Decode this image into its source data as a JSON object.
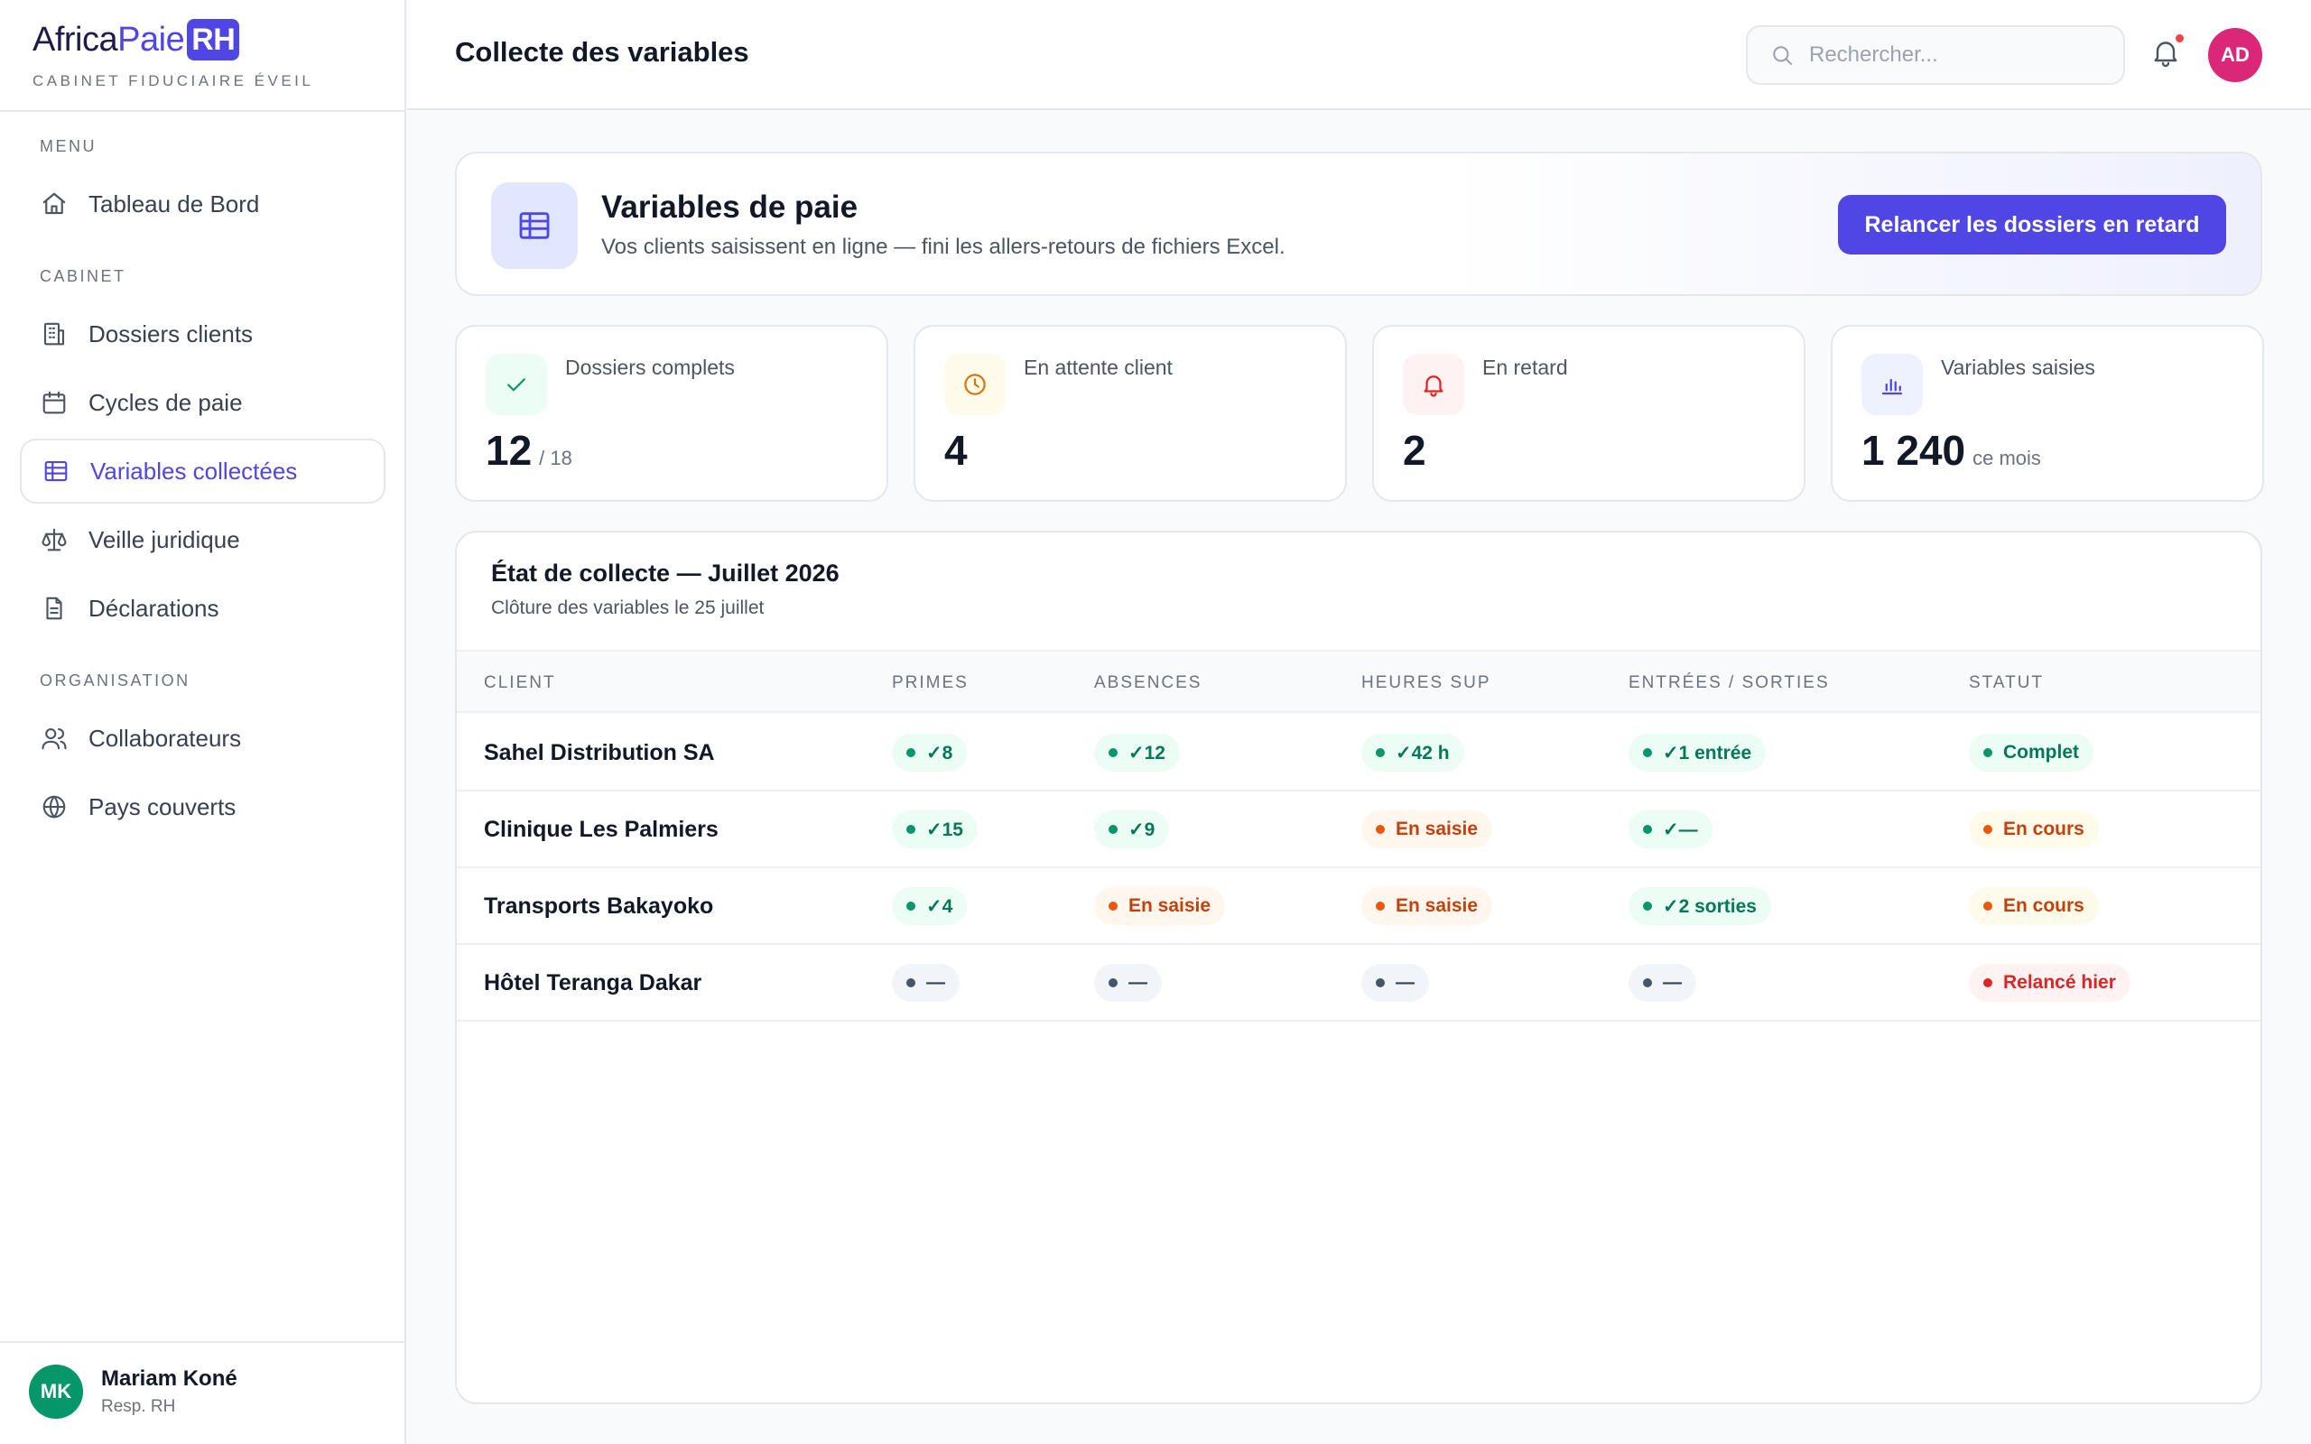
{
  "brand": {
    "part1": "Africa",
    "part2": "Paie",
    "part3": "RH",
    "subtitle": "CABINET FIDUCIAIRE ÉVEIL"
  },
  "sidebar": {
    "sections": [
      "MENU",
      "CABINET",
      "ORGANISATION"
    ],
    "items": [
      {
        "label": "Tableau de Bord",
        "icon": "home-icon"
      },
      {
        "label": "Dossiers clients",
        "icon": "building-icon"
      },
      {
        "label": "Cycles de paie",
        "icon": "calendar-icon"
      },
      {
        "label": "Variables collectées",
        "icon": "table-icon",
        "active": true
      },
      {
        "label": "Veille juridique",
        "icon": "scale-icon"
      },
      {
        "label": "Déclarations",
        "icon": "document-icon"
      },
      {
        "label": "Collaborateurs",
        "icon": "users-icon"
      },
      {
        "label": "Pays couverts",
        "icon": "globe-icon"
      }
    ],
    "user": {
      "initials": "MK",
      "name": "Mariam Koné",
      "role": "Resp. RH"
    }
  },
  "header": {
    "title": "Collecte des variables",
    "search_placeholder": "Rechercher...",
    "avatar_initials": "AD"
  },
  "banner": {
    "title": "Variables de paie",
    "subtitle": "Vos clients saisissent en ligne — fini les allers-retours de fichiers Excel.",
    "button": "Relancer les dossiers en retard"
  },
  "stats": [
    {
      "label": "Dossiers complets",
      "value": "12",
      "suffix": "/ 18",
      "icon": "check-icon",
      "color": "#059669"
    },
    {
      "label": "En attente client",
      "value": "4",
      "suffix": "",
      "icon": "clock-icon",
      "color": "#d97706"
    },
    {
      "label": "En retard",
      "value": "2",
      "suffix": "",
      "icon": "bell-icon",
      "color": "#dc2626"
    },
    {
      "label": "Variables saisies",
      "value": "1 240",
      "suffix": "ce mois",
      "icon": "bar-chart-icon",
      "color": "#4f46e5"
    }
  ],
  "table": {
    "title": "État de collecte — Juillet 2026",
    "subtitle": "Clôture des variables le 25 juillet",
    "columns": [
      "CLIENT",
      "PRIMES",
      "ABSENCES",
      "HEURES SUP",
      "ENTRÉES / SORTIES",
      "STATUT"
    ],
    "rows": [
      {
        "client": "Sahel Distribution SA",
        "cells": [
          {
            "text": "✓8",
            "tone": "g"
          },
          {
            "text": "✓12",
            "tone": "g"
          },
          {
            "text": "✓42 h",
            "tone": "g"
          },
          {
            "text": "✓1 entrée",
            "tone": "g"
          },
          {
            "text": "Complet",
            "tone": "g"
          }
        ]
      },
      {
        "client": "Clinique Les Palmiers",
        "cells": [
          {
            "text": "✓15",
            "tone": "g"
          },
          {
            "text": "✓9",
            "tone": "g"
          },
          {
            "text": "En saisie",
            "tone": "o"
          },
          {
            "text": "✓—",
            "tone": "g"
          },
          {
            "text": "En cours",
            "tone": "o2"
          }
        ]
      },
      {
        "client": "Transports Bakayoko",
        "cells": [
          {
            "text": "✓4",
            "tone": "g"
          },
          {
            "text": "En saisie",
            "tone": "o"
          },
          {
            "text": "En saisie",
            "tone": "o"
          },
          {
            "text": "✓2 sorties",
            "tone": "g"
          },
          {
            "text": "En cours",
            "tone": "o2"
          }
        ]
      },
      {
        "client": "Hôtel Teranga Dakar",
        "cells": [
          {
            "text": "—",
            "tone": "n"
          },
          {
            "text": "—",
            "tone": "n"
          },
          {
            "text": "—",
            "tone": "n"
          },
          {
            "text": "—",
            "tone": "n"
          },
          {
            "text": "Relancé hier",
            "tone": "r"
          }
        ]
      }
    ]
  }
}
